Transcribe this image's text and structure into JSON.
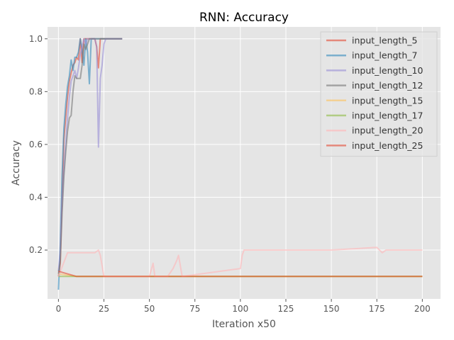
{
  "chart_data": {
    "type": "line",
    "title": "RNN: Accuracy",
    "xlabel": "Iteration x50",
    "ylabel": "Accuracy",
    "xlim": [
      -6,
      210
    ],
    "ylim": [
      0.015,
      1.045
    ],
    "xticks": [
      0,
      25,
      50,
      75,
      100,
      125,
      150,
      175,
      200
    ],
    "yticks": [
      0.2,
      0.4,
      0.6,
      0.8,
      1.0
    ],
    "xtick_labels": [
      "0",
      "25",
      "50",
      "75",
      "100",
      "125",
      "150",
      "175",
      "200"
    ],
    "ytick_labels": [
      "0.2",
      "0.4",
      "0.6",
      "0.8",
      "1.0"
    ],
    "grid": true,
    "legend_position": "top-right",
    "series": [
      {
        "name": "input_length_5",
        "color": "#E24A33",
        "x": [
          0,
          1,
          2,
          3,
          4,
          5,
          6,
          7,
          8,
          9,
          10,
          11,
          12,
          13,
          14,
          15,
          16,
          17,
          18,
          19,
          20,
          21,
          22,
          23,
          24,
          25,
          26,
          27,
          28,
          29,
          30,
          31,
          32,
          33,
          34,
          35
        ],
        "y": [
          0.1,
          0.15,
          0.4,
          0.62,
          0.7,
          0.78,
          0.84,
          0.87,
          0.9,
          0.91,
          0.93,
          0.92,
          1.0,
          0.91,
          1.0,
          1.0,
          1.0,
          1.0,
          1.0,
          1.0,
          1.0,
          0.97,
          0.89,
          1.0,
          1.0,
          1.0,
          1.0,
          1.0,
          1.0,
          1.0,
          1.0,
          1.0,
          1.0,
          1.0,
          1.0,
          1.0
        ]
      },
      {
        "name": "input_length_7",
        "color": "#348ABD",
        "x": [
          0,
          1,
          2,
          3,
          4,
          5,
          6,
          7,
          8,
          9,
          10,
          11,
          12,
          13,
          14,
          15,
          16,
          17,
          18,
          19,
          20,
          21,
          22,
          23,
          24,
          25,
          26,
          27,
          28,
          29,
          30,
          31,
          32,
          33,
          34,
          35
        ],
        "y": [
          0.05,
          0.22,
          0.48,
          0.66,
          0.75,
          0.82,
          0.86,
          0.92,
          0.88,
          0.93,
          0.93,
          0.95,
          1.0,
          0.96,
          0.9,
          1.0,
          0.95,
          0.83,
          1.0,
          1.0,
          1.0,
          1.0,
          1.0,
          1.0,
          1.0,
          1.0,
          1.0,
          1.0,
          1.0,
          1.0,
          1.0,
          1.0,
          1.0,
          1.0,
          1.0,
          1.0
        ]
      },
      {
        "name": "input_length_10",
        "color": "#988ED5",
        "x": [
          0,
          1,
          2,
          3,
          4,
          5,
          6,
          7,
          8,
          9,
          10,
          11,
          12,
          13,
          14,
          15,
          16,
          17,
          18,
          19,
          20,
          21,
          22,
          23,
          24,
          25,
          26,
          27,
          28,
          29,
          30,
          31,
          32,
          33,
          34,
          35
        ],
        "y": [
          0.12,
          0.2,
          0.38,
          0.5,
          0.6,
          0.7,
          0.78,
          0.84,
          0.86,
          0.88,
          0.85,
          0.89,
          0.94,
          0.97,
          1.0,
          0.98,
          1.0,
          1.0,
          1.0,
          1.0,
          1.0,
          0.97,
          0.59,
          0.85,
          0.9,
          0.98,
          1.0,
          1.0,
          1.0,
          1.0,
          1.0,
          1.0,
          1.0,
          1.0,
          1.0,
          1.0
        ]
      },
      {
        "name": "input_length_12",
        "color": "#777777",
        "x": [
          0,
          1,
          2,
          3,
          4,
          5,
          6,
          7,
          8,
          9,
          10,
          11,
          12,
          13,
          14,
          15,
          16,
          17,
          18,
          19,
          20,
          21,
          22,
          23,
          24,
          25,
          26,
          27,
          28,
          29,
          30,
          31,
          32,
          33,
          34,
          35
        ],
        "y": [
          0.11,
          0.16,
          0.34,
          0.48,
          0.57,
          0.65,
          0.7,
          0.71,
          0.8,
          0.86,
          0.85,
          0.85,
          0.85,
          0.9,
          0.98,
          0.96,
          0.98,
          1.0,
          1.0,
          1.0,
          1.0,
          1.0,
          1.0,
          1.0,
          1.0,
          1.0,
          1.0,
          1.0,
          1.0,
          1.0,
          1.0,
          1.0,
          1.0,
          1.0,
          1.0,
          1.0
        ]
      },
      {
        "name": "input_length_15",
        "color": "#FBC15E",
        "x": [
          0,
          10,
          20,
          30,
          40,
          50,
          60,
          70,
          80,
          90,
          100,
          110,
          120,
          130,
          140,
          150,
          160,
          170,
          180,
          190,
          200
        ],
        "y": [
          0.11,
          0.1,
          0.1,
          0.1,
          0.1,
          0.1,
          0.1,
          0.1,
          0.1,
          0.1,
          0.1,
          0.1,
          0.1,
          0.1,
          0.1,
          0.1,
          0.1,
          0.1,
          0.1,
          0.1,
          0.1
        ]
      },
      {
        "name": "input_length_17",
        "color": "#8EBA42",
        "x": [
          0,
          10,
          20,
          30,
          40,
          50,
          60,
          70,
          80,
          90,
          100,
          110,
          120,
          130,
          140,
          150,
          160,
          170,
          180,
          190,
          200
        ],
        "y": [
          0.1,
          0.1,
          0.1,
          0.1,
          0.1,
          0.1,
          0.1,
          0.1,
          0.1,
          0.1,
          0.1,
          0.1,
          0.1,
          0.1,
          0.1,
          0.1,
          0.1,
          0.1,
          0.1,
          0.1,
          0.1
        ]
      },
      {
        "name": "input_length_20",
        "color": "#FFB5B8",
        "x": [
          0,
          5,
          10,
          15,
          20,
          22,
          23,
          25,
          50,
          52,
          53,
          60,
          63,
          65,
          66,
          68,
          100,
          101,
          102,
          103,
          125,
          150,
          175,
          178,
          180,
          200
        ],
        "y": [
          0.1,
          0.19,
          0.19,
          0.19,
          0.19,
          0.2,
          0.18,
          0.1,
          0.1,
          0.15,
          0.1,
          0.1,
          0.13,
          0.16,
          0.18,
          0.1,
          0.13,
          0.18,
          0.2,
          0.2,
          0.2,
          0.2,
          0.21,
          0.19,
          0.2,
          0.2
        ]
      },
      {
        "name": "input_length_25",
        "color": "#E24A33",
        "x": [
          0,
          10,
          20,
          30,
          40,
          50,
          60,
          70,
          80,
          90,
          100,
          110,
          120,
          130,
          140,
          150,
          160,
          170,
          180,
          190,
          200
        ],
        "y": [
          0.12,
          0.1,
          0.1,
          0.1,
          0.1,
          0.1,
          0.1,
          0.1,
          0.1,
          0.1,
          0.1,
          0.1,
          0.1,
          0.1,
          0.1,
          0.1,
          0.1,
          0.1,
          0.1,
          0.1,
          0.1
        ]
      }
    ]
  }
}
